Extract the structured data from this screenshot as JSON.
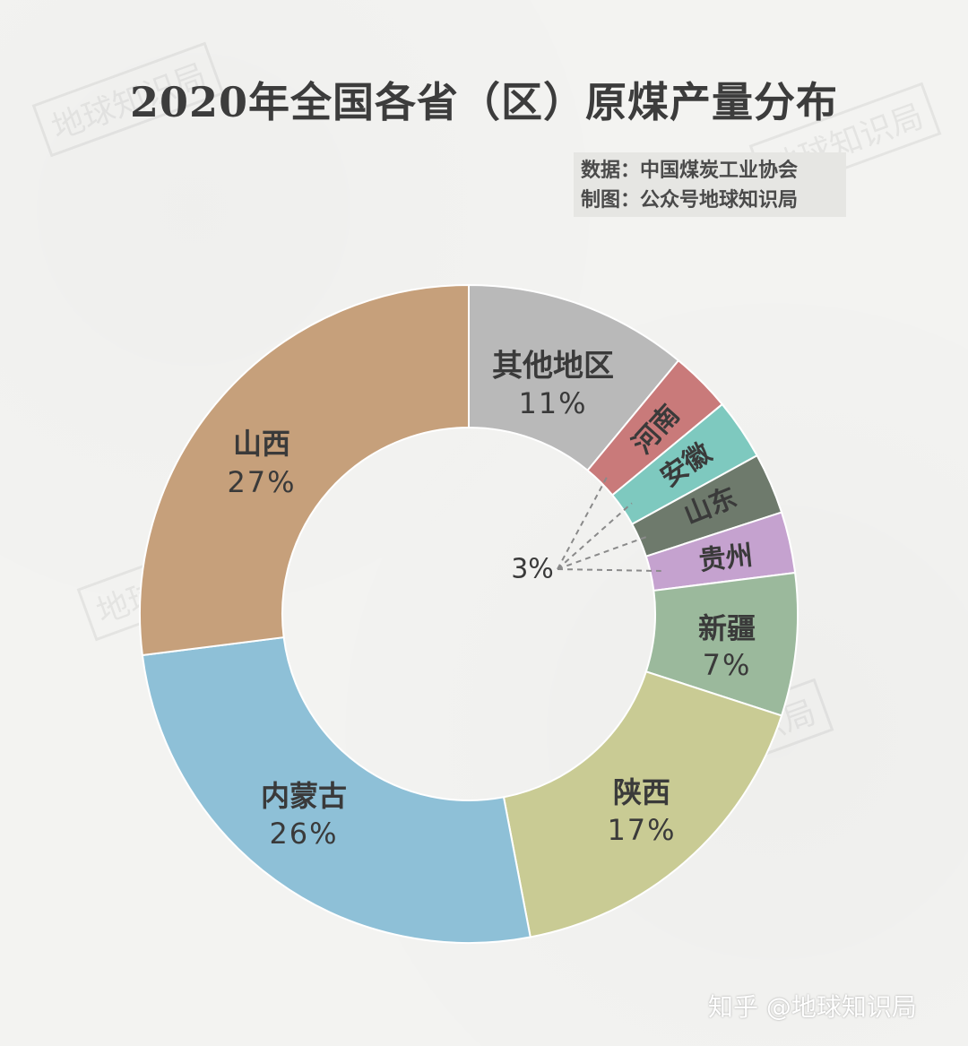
{
  "title": "2020年全国各省（区）原煤产量分布",
  "source": {
    "line1": "数据：中国煤炭工业协会",
    "line2": "制图：公众号地球知识局"
  },
  "watermark_text": "地球知识局",
  "footer_watermark": "知乎 @地球知识局",
  "chart_data": {
    "type": "pie",
    "donut": true,
    "slices": [
      {
        "name": "其他地区",
        "value": 11,
        "label": "11%",
        "color": "#b9b9b9"
      },
      {
        "name": "河南",
        "value": 3,
        "label": "",
        "color": "#c97a7a"
      },
      {
        "name": "安徽",
        "value": 3,
        "label": "",
        "color": "#7ec9bf"
      },
      {
        "name": "山东",
        "value": 3,
        "label": "",
        "color": "#6e7a6c"
      },
      {
        "name": "贵州",
        "value": 3,
        "label": "",
        "color": "#c5a2cf"
      },
      {
        "name": "新疆",
        "value": 7,
        "label": "7%",
        "color": "#9bb99c"
      },
      {
        "name": "陕西",
        "value": 17,
        "label": "17%",
        "color": "#c9cb94"
      },
      {
        "name": "内蒙古",
        "value": 26,
        "label": "26%",
        "color": "#8ec0d7"
      },
      {
        "name": "山西",
        "value": 27,
        "label": "27%",
        "color": "#c6a07b"
      }
    ],
    "shared_small_label": "3%"
  }
}
